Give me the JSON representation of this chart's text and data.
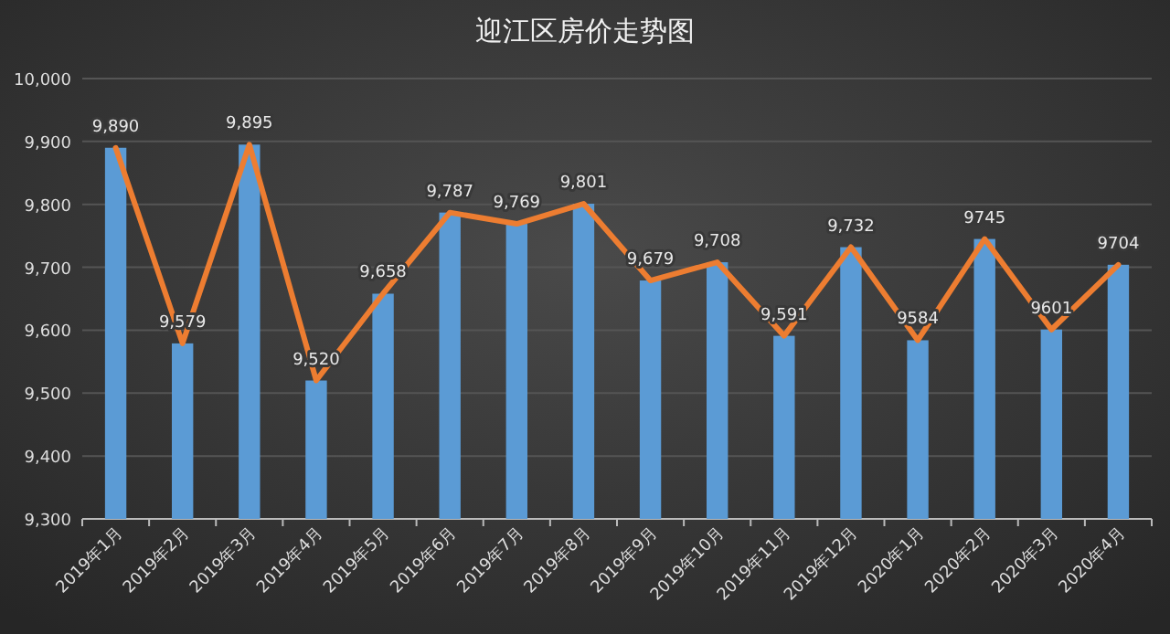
{
  "chart_data": {
    "type": "bar",
    "title": "迎江区房价走势图",
    "categories": [
      "2019年1月",
      "2019年2月",
      "2019年3月",
      "2019年4月",
      "2019年5月",
      "2019年6月",
      "2019年7月",
      "2019年8月",
      "2019年9月",
      "2019年10月",
      "2019年11月",
      "2019年12月",
      "2020年1月",
      "2020年2月",
      "2020年3月",
      "2020年4月"
    ],
    "series": [
      {
        "color": "#5b9bd5",
        "values": [
          9890,
          9579,
          9895,
          9520,
          9658,
          9787,
          9769,
          9801,
          9679,
          9708,
          9591,
          9732,
          9584,
          9745,
          9601,
          9704
        ]
      },
      {
        "type": "line",
        "color": "#ed7d31",
        "values": [
          9890,
          9579,
          9895,
          9520,
          9658,
          9787,
          9769,
          9801,
          9679,
          9708,
          9591,
          9732,
          9584,
          9745,
          9601,
          9704
        ],
        "value_labels": [
          "9,890",
          "9,579",
          "9,895",
          "9,520",
          "9,658",
          "9,787",
          "9,769",
          "9,801",
          "9,679",
          "9,708",
          "9,591",
          "9,732",
          "9584",
          "9745",
          "9601",
          "9704"
        ]
      }
    ],
    "ylim": [
      9300,
      10000
    ],
    "yticks": [
      {
        "value": 9300,
        "label": "9,300"
      },
      {
        "value": 9400,
        "label": "9,400"
      },
      {
        "value": 9500,
        "label": "9,500"
      },
      {
        "value": 9600,
        "label": "9,600"
      },
      {
        "value": 9700,
        "label": "9,700"
      },
      {
        "value": 9800,
        "label": "9,800"
      },
      {
        "value": 9900,
        "label": "9,900"
      },
      {
        "value": 10000,
        "label": "10,000"
      }
    ],
    "grid": "y",
    "marker": "none",
    "line_style": "solid"
  }
}
